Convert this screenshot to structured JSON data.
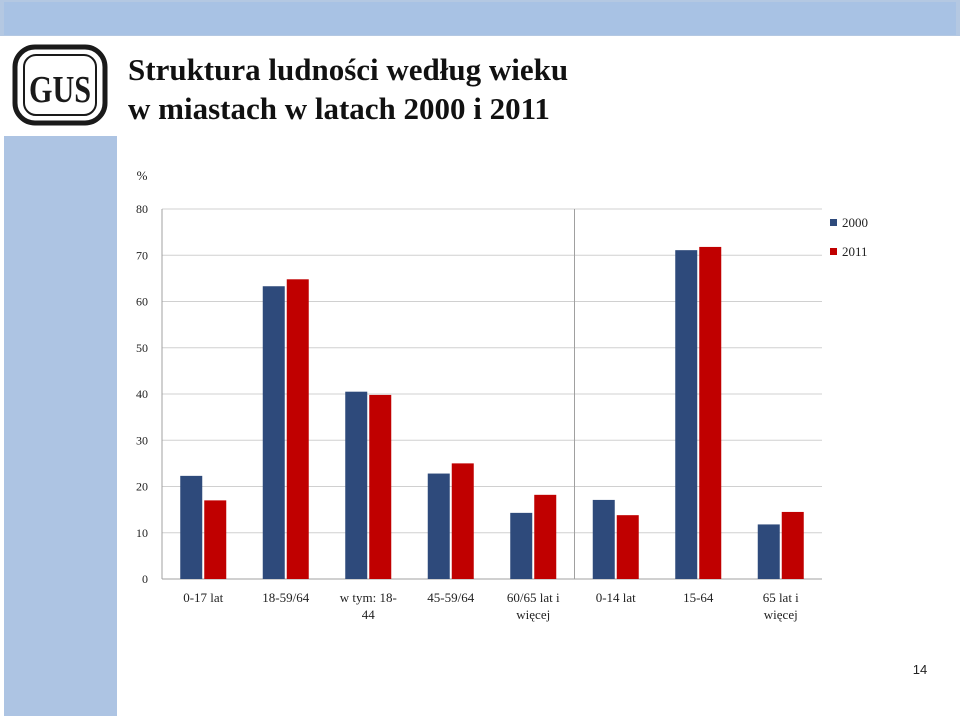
{
  "slide": {
    "title_line1": "Struktura ludności według wieku",
    "title_line2": "w miastach w latach 2000 i 2011",
    "page_number": "14",
    "logo_text": "GUS"
  },
  "colors": {
    "band": "#adc4e3",
    "series_2000": "#2e4a7b",
    "series_2011": "#c00000",
    "grid": "#d0d0d0"
  },
  "chart_data": {
    "type": "bar",
    "title": "",
    "ylabel": "%",
    "xlabel": "",
    "ylim": [
      0,
      80
    ],
    "yticks": [
      0,
      10,
      20,
      30,
      40,
      50,
      60,
      70,
      80
    ],
    "grid": true,
    "legend_position": "top-right",
    "categories": [
      [
        "0-17 lat"
      ],
      [
        "18-59/64"
      ],
      [
        "w tym: 18-",
        "44"
      ],
      [
        "45-59/64"
      ],
      [
        "60/65 lat i",
        "więcej"
      ],
      [
        "0-14 lat"
      ],
      [
        "15-64"
      ],
      [
        "65 lat i",
        "więcej"
      ]
    ],
    "series": [
      {
        "name": "2000",
        "color": "#2e4a7b",
        "values": [
          22.3,
          63.3,
          40.5,
          22.8,
          14.3,
          17.1,
          71.1,
          11.8
        ]
      },
      {
        "name": "2011",
        "color": "#c00000",
        "values": [
          17.0,
          64.8,
          39.8,
          25.0,
          18.2,
          13.8,
          71.8,
          14.5
        ]
      }
    ]
  }
}
